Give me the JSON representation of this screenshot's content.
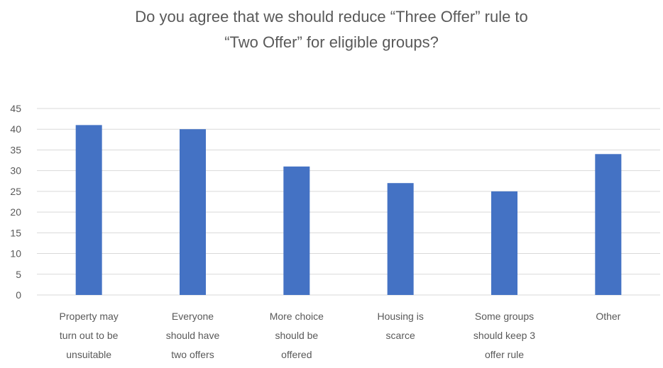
{
  "chart_data": {
    "type": "bar",
    "title_lines": [
      "Do you agree that we should reduce “Three Offer” rule to",
      "“Two Offer” for eligible groups?"
    ],
    "categories": [
      [
        "Property may",
        "turn out to be",
        "unsuitable"
      ],
      [
        "Everyone",
        "should have",
        "two offers"
      ],
      [
        "More choice",
        "should be",
        "offered"
      ],
      [
        "Housing is",
        "scarce"
      ],
      [
        "Some groups",
        "should keep 3",
        "offer rule"
      ],
      [
        "Other"
      ]
    ],
    "values": [
      41,
      40,
      31,
      27,
      25,
      34
    ],
    "ylim": [
      0,
      45
    ],
    "yticks": [
      0,
      5,
      10,
      15,
      20,
      25,
      30,
      35,
      40,
      45
    ],
    "grid": true,
    "legend": false,
    "bar_color": "#4472C4",
    "grid_color": "#d9d9d9"
  }
}
